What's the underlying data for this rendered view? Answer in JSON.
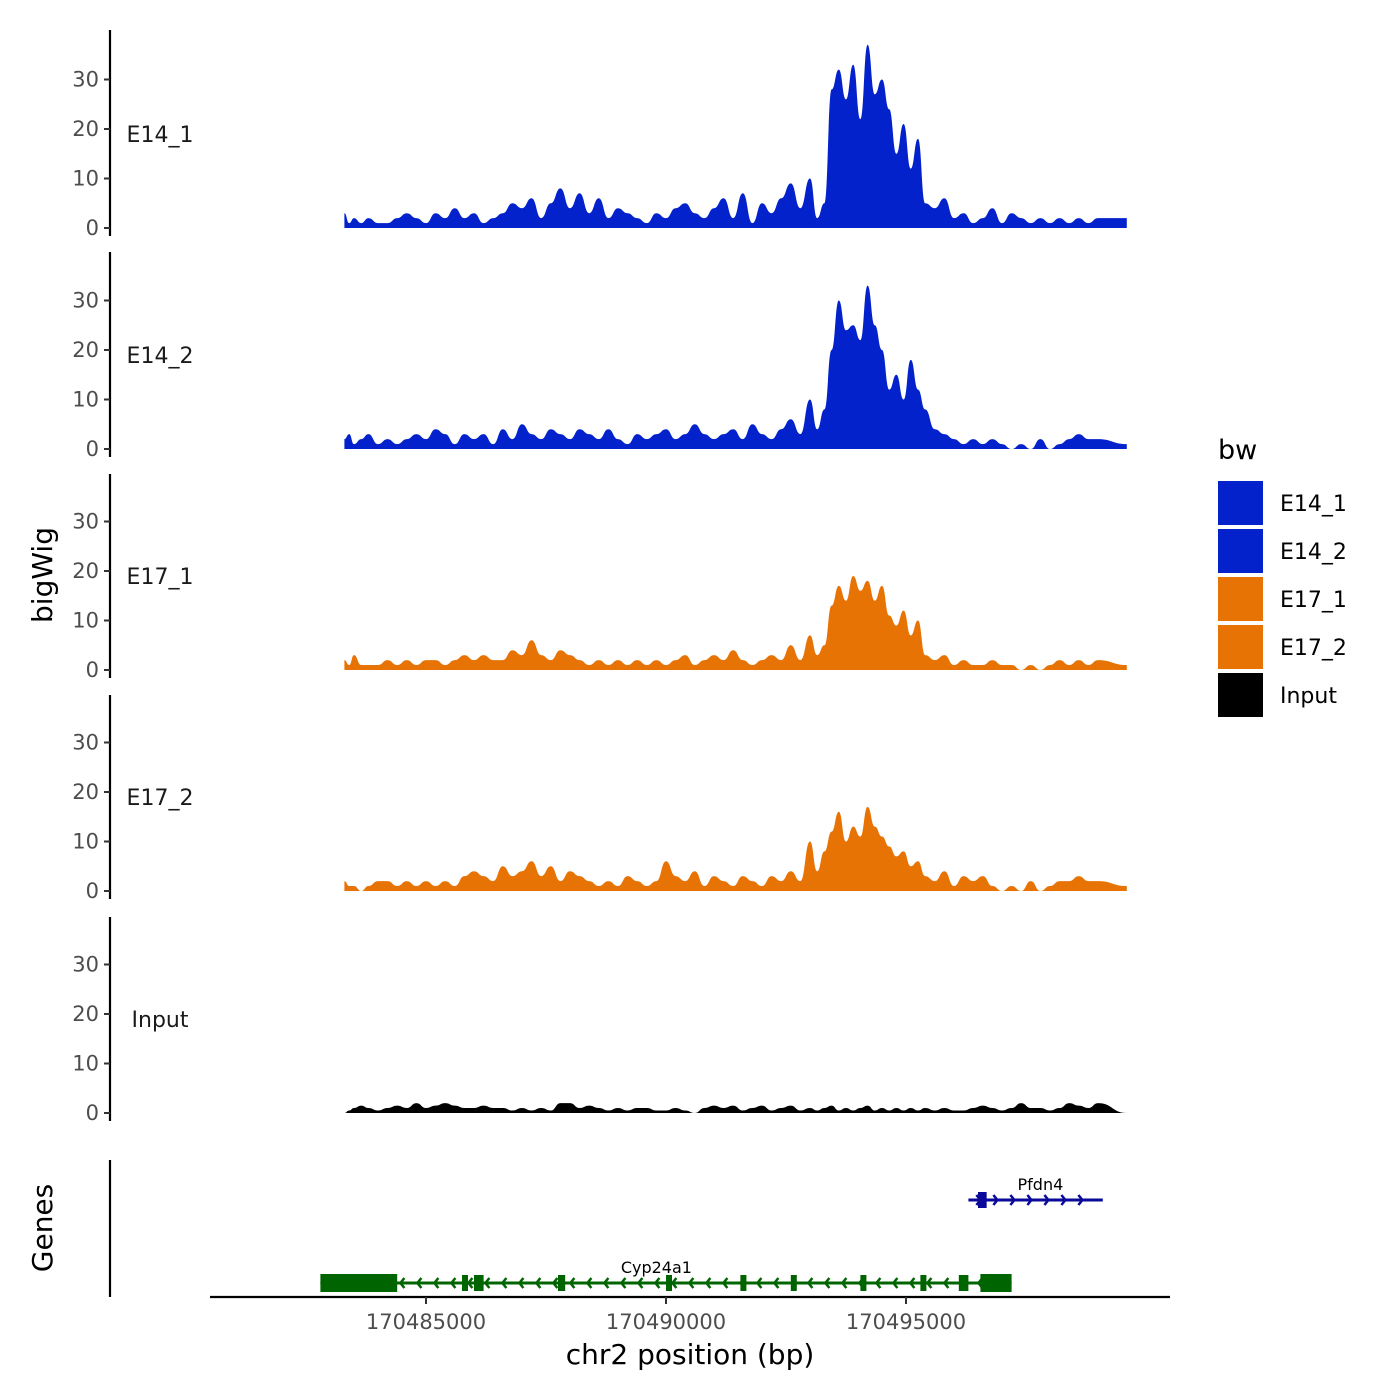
{
  "chart_data": {
    "type": "area",
    "ylabel": "bigWig",
    "xlabel": "chr2 position (bp)",
    "genes_label": "Genes",
    "xlim": [
      170480500,
      170500500
    ],
    "ylim": [
      0,
      38
    ],
    "yticks": [
      0,
      10,
      20,
      30
    ],
    "xticks": [
      170485000,
      170490000,
      170495000
    ],
    "xtick_labels": [
      "170485000",
      "170490000",
      "170495000"
    ],
    "legend": {
      "title": "bw",
      "entries": [
        {
          "name": "E14_1",
          "color": "#0322CC"
        },
        {
          "name": "E14_2",
          "color": "#0322CC"
        },
        {
          "name": "E17_1",
          "color": "#E87305"
        },
        {
          "name": "E17_2",
          "color": "#E87305"
        },
        {
          "name": "Input",
          "color": "#000000"
        }
      ]
    },
    "series": [
      {
        "name": "E14_1",
        "color": "#0322CC",
        "x": [
          170483300,
          170483400,
          170483500,
          170483650,
          170483800,
          170484000,
          170484200,
          170484400,
          170484600,
          170484800,
          170485000,
          170485200,
          170485400,
          170485600,
          170485800,
          170486000,
          170486200,
          170486400,
          170486600,
          170486800,
          170487000,
          170487200,
          170487400,
          170487600,
          170487800,
          170488000,
          170488200,
          170488400,
          170488600,
          170488800,
          170489000,
          170489200,
          170489400,
          170489600,
          170489800,
          170490000,
          170490200,
          170490400,
          170490600,
          170490800,
          170491000,
          170491200,
          170491400,
          170491600,
          170491800,
          170492000,
          170492200,
          170492400,
          170492600,
          170492800,
          170493000,
          170493150,
          170493300,
          170493450,
          170493600,
          170493750,
          170493900,
          170494050,
          170494200,
          170494350,
          170494500,
          170494650,
          170494800,
          170494950,
          170495100,
          170495250,
          170495400,
          170495600,
          170495800,
          170496000,
          170496200,
          170496400,
          170496600,
          170496800,
          170497000,
          170497200,
          170497400,
          170497600,
          170497800,
          170498000,
          170498200,
          170498400,
          170498600,
          170498800,
          170499000,
          170499600
        ],
        "values": [
          3,
          1,
          2,
          1,
          2,
          1,
          1,
          2,
          3,
          2,
          1,
          3,
          2,
          4,
          2,
          3,
          1,
          2,
          3,
          5,
          4,
          6,
          2,
          5,
          8,
          4,
          7,
          3,
          6,
          2,
          4,
          3,
          2,
          1,
          3,
          2,
          4,
          5,
          3,
          2,
          4,
          6,
          2,
          7,
          1,
          5,
          3,
          6,
          9,
          4,
          10,
          2,
          5,
          28,
          32,
          26,
          33,
          22,
          37,
          27,
          30,
          24,
          15,
          21,
          12,
          18,
          5,
          4,
          6,
          2,
          3,
          1,
          2,
          4,
          1,
          3,
          2,
          1,
          2,
          1,
          2,
          1,
          2,
          1,
          2,
          2
        ],
        "fill": true
      },
      {
        "name": "E14_2",
        "color": "#0322CC",
        "x": [
          170483300,
          170483400,
          170483500,
          170483650,
          170483800,
          170484000,
          170484200,
          170484400,
          170484600,
          170484800,
          170485000,
          170485200,
          170485400,
          170485600,
          170485800,
          170486000,
          170486200,
          170486400,
          170486600,
          170486800,
          170487000,
          170487200,
          170487400,
          170487600,
          170487800,
          170488000,
          170488200,
          170488400,
          170488600,
          170488800,
          170489000,
          170489200,
          170489400,
          170489600,
          170489800,
          170490000,
          170490200,
          170490400,
          170490600,
          170490800,
          170491000,
          170491200,
          170491400,
          170491600,
          170491800,
          170492000,
          170492200,
          170492400,
          170492600,
          170492800,
          170493000,
          170493150,
          170493300,
          170493450,
          170493600,
          170493750,
          170493900,
          170494050,
          170494200,
          170494350,
          170494500,
          170494650,
          170494800,
          170494950,
          170495100,
          170495250,
          170495400,
          170495600,
          170495800,
          170496000,
          170496200,
          170496400,
          170496600,
          170496800,
          170497000,
          170497200,
          170497400,
          170497600,
          170497800,
          170498000,
          170498200,
          170498400,
          170498600,
          170498800,
          170499000,
          170499600
        ],
        "values": [
          2,
          3,
          1,
          2,
          3,
          1,
          2,
          1,
          2,
          3,
          2,
          4,
          3,
          1,
          3,
          2,
          3,
          1,
          4,
          2,
          5,
          3,
          2,
          4,
          3,
          2,
          4,
          3,
          2,
          4,
          2,
          1,
          3,
          2,
          3,
          4,
          2,
          3,
          5,
          3,
          2,
          3,
          4,
          2,
          5,
          3,
          2,
          4,
          6,
          3,
          10,
          4,
          8,
          20,
          30,
          24,
          25,
          22,
          33,
          25,
          20,
          12,
          15,
          10,
          18,
          12,
          8,
          4,
          3,
          2,
          1,
          2,
          1,
          2,
          1,
          0,
          1,
          0,
          2,
          0,
          1,
          2,
          3,
          2,
          2,
          1
        ],
        "fill": true
      },
      {
        "name": "E17_1",
        "color": "#E87305",
        "x": [
          170483300,
          170483400,
          170483500,
          170483650,
          170483800,
          170484000,
          170484200,
          170484400,
          170484600,
          170484800,
          170485000,
          170485200,
          170485400,
          170485600,
          170485800,
          170486000,
          170486200,
          170486400,
          170486600,
          170486800,
          170487000,
          170487200,
          170487400,
          170487600,
          170487800,
          170488000,
          170488200,
          170488400,
          170488600,
          170488800,
          170489000,
          170489200,
          170489400,
          170489600,
          170489800,
          170490000,
          170490200,
          170490400,
          170490600,
          170490800,
          170491000,
          170491200,
          170491400,
          170491600,
          170491800,
          170492000,
          170492200,
          170492400,
          170492600,
          170492800,
          170493000,
          170493150,
          170493300,
          170493450,
          170493600,
          170493750,
          170493900,
          170494050,
          170494200,
          170494350,
          170494500,
          170494650,
          170494800,
          170494950,
          170495100,
          170495250,
          170495400,
          170495600,
          170495800,
          170496000,
          170496200,
          170496400,
          170496600,
          170496800,
          170497000,
          170497200,
          170497400,
          170497600,
          170497800,
          170498000,
          170498200,
          170498400,
          170498600,
          170498800,
          170499000,
          170499600
        ],
        "values": [
          2,
          1,
          3,
          1,
          1,
          1,
          2,
          1,
          2,
          1,
          2,
          2,
          1,
          2,
          3,
          2,
          3,
          2,
          2,
          4,
          3,
          6,
          3,
          2,
          4,
          3,
          2,
          1,
          2,
          1,
          2,
          1,
          2,
          1,
          2,
          1,
          2,
          3,
          1,
          2,
          3,
          2,
          4,
          2,
          1,
          2,
          3,
          2,
          5,
          2,
          7,
          3,
          5,
          13,
          17,
          14,
          19,
          16,
          18,
          14,
          17,
          11,
          9,
          12,
          7,
          10,
          3,
          2,
          3,
          1,
          2,
          1,
          1,
          2,
          1,
          1,
          0,
          1,
          0,
          1,
          2,
          1,
          2,
          1,
          2,
          1
        ],
        "fill": true
      },
      {
        "name": "E17_2",
        "color": "#E87305",
        "x": [
          170483300,
          170483400,
          170483500,
          170483650,
          170483800,
          170484000,
          170484200,
          170484400,
          170484600,
          170484800,
          170485000,
          170485200,
          170485400,
          170485600,
          170485800,
          170486000,
          170486200,
          170486400,
          170486600,
          170486800,
          170487000,
          170487200,
          170487400,
          170487600,
          170487800,
          170488000,
          170488200,
          170488400,
          170488600,
          170488800,
          170489000,
          170489200,
          170489400,
          170489600,
          170489800,
          170490000,
          170490200,
          170490400,
          170490600,
          170490800,
          170491000,
          170491200,
          170491400,
          170491600,
          170491800,
          170492000,
          170492200,
          170492400,
          170492600,
          170492800,
          170493000,
          170493150,
          170493300,
          170493450,
          170493600,
          170493750,
          170493900,
          170494050,
          170494200,
          170494350,
          170494500,
          170494650,
          170494800,
          170494950,
          170495100,
          170495250,
          170495400,
          170495600,
          170495800,
          170496000,
          170496200,
          170496400,
          170496600,
          170496800,
          170497000,
          170497200,
          170497400,
          170497600,
          170497800,
          170498000,
          170498200,
          170498400,
          170498600,
          170498800,
          170499000,
          170499600
        ],
        "values": [
          2,
          1,
          1,
          0,
          1,
          2,
          2,
          1,
          2,
          1,
          2,
          1,
          2,
          1,
          3,
          4,
          3,
          2,
          5,
          3,
          4,
          6,
          3,
          5,
          2,
          4,
          3,
          2,
          1,
          2,
          1,
          3,
          2,
          1,
          2,
          6,
          3,
          2,
          4,
          1,
          3,
          2,
          1,
          3,
          2,
          1,
          3,
          2,
          4,
          2,
          10,
          4,
          8,
          12,
          16,
          10,
          13,
          11,
          17,
          13,
          11,
          9,
          7,
          8,
          5,
          6,
          3,
          2,
          4,
          1,
          3,
          2,
          3,
          1,
          0,
          1,
          0,
          2,
          0,
          1,
          2,
          2,
          3,
          2,
          2,
          1
        ],
        "fill": true
      },
      {
        "name": "Input",
        "color": "#000000",
        "x": [
          170483300,
          170483400,
          170483500,
          170483650,
          170483800,
          170484000,
          170484200,
          170484400,
          170484600,
          170484800,
          170485000,
          170485200,
          170485400,
          170485600,
          170485800,
          170486000,
          170486200,
          170486400,
          170486600,
          170486800,
          170487000,
          170487200,
          170487400,
          170487600,
          170487800,
          170488000,
          170488200,
          170488400,
          170488600,
          170488800,
          170489000,
          170489200,
          170489400,
          170489600,
          170489800,
          170490000,
          170490200,
          170490400,
          170490600,
          170490800,
          170491000,
          170491200,
          170491400,
          170491600,
          170491800,
          170492000,
          170492200,
          170492400,
          170492600,
          170492800,
          170493000,
          170493150,
          170493300,
          170493450,
          170493600,
          170493750,
          170493900,
          170494050,
          170494200,
          170494350,
          170494500,
          170494650,
          170494800,
          170494950,
          170495100,
          170495250,
          170495400,
          170495600,
          170495800,
          170496000,
          170496200,
          170496400,
          170496600,
          170496800,
          170497000,
          170497200,
          170497400,
          170497600,
          170497800,
          170498000,
          170498200,
          170498400,
          170498600,
          170498800,
          170499000,
          170499600
        ],
        "values": [
          0,
          0.5,
          1,
          1.5,
          1,
          0.5,
          1,
          1.5,
          1,
          2,
          1,
          1.5,
          2,
          1.5,
          1,
          1,
          1.5,
          1,
          1,
          0.5,
          1,
          0.5,
          1,
          0.5,
          2,
          2,
          1,
          1.5,
          1,
          0.5,
          1,
          0.5,
          1,
          1,
          0.5,
          0.5,
          1,
          0.5,
          0,
          1,
          1.5,
          1,
          1.5,
          0.5,
          1,
          1.5,
          0.5,
          1,
          1.5,
          0.5,
          1,
          0.5,
          1,
          1.5,
          0.5,
          1,
          0.5,
          1,
          1.5,
          0.5,
          1,
          0.5,
          1,
          0.5,
          1,
          0.5,
          1,
          0.5,
          1,
          0.5,
          0.5,
          1,
          1.5,
          1,
          0.5,
          1,
          2,
          1,
          1,
          0.5,
          1,
          2,
          1.5,
          1,
          2,
          0
        ],
        "fill": true
      }
    ],
    "genes": [
      {
        "name": "Pfdn4",
        "strand": "+",
        "color": "#0A0A9A",
        "start": 170496300,
        "end": 170499100,
        "exons": [
          [
            170496500,
            170496680
          ]
        ]
      },
      {
        "name": "Cyp24a1",
        "strand": "-",
        "color": "#006400",
        "start": 170482800,
        "end": 170497200,
        "exons": [
          [
            170482800,
            170484400
          ],
          [
            170485750,
            170485850
          ],
          [
            170486000,
            170486200
          ],
          [
            170487750,
            170487900
          ],
          [
            170490000,
            170490100
          ],
          [
            170491550,
            170491650
          ],
          [
            170492600,
            170492700
          ],
          [
            170494050,
            170494150
          ],
          [
            170495300,
            170495400
          ],
          [
            170496100,
            170496300
          ],
          [
            170496550,
            170497200
          ]
        ]
      }
    ]
  }
}
